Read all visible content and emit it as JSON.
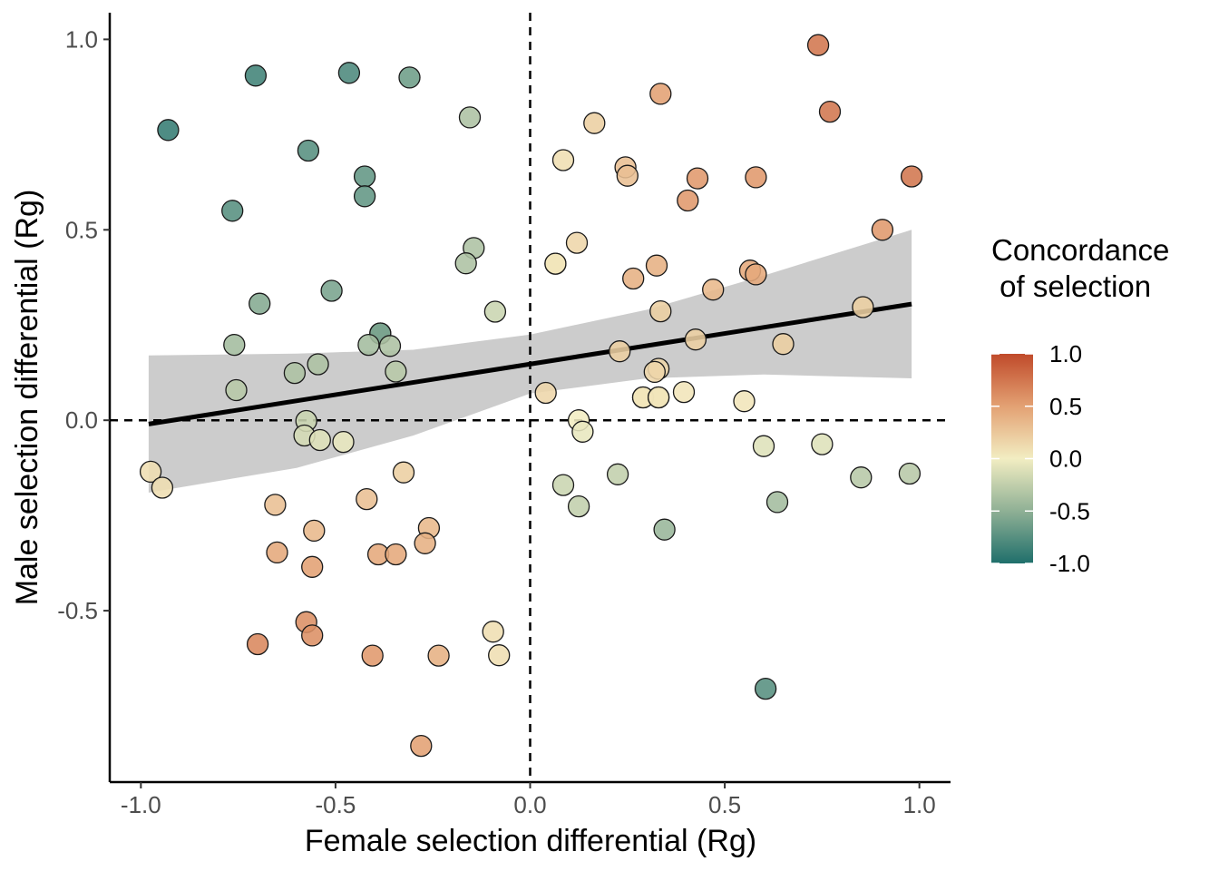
{
  "chart_data": {
    "type": "scatter",
    "xlabel": "Female selection differential (Rg)",
    "ylabel": "Male selection differential (Rg)",
    "xlim": [
      -1.08,
      1.08
    ],
    "ylim": [
      -0.95,
      1.07
    ],
    "x_ticks": [
      -1.0,
      -0.5,
      0.0,
      0.5,
      1.0
    ],
    "x_tick_labels": [
      "-1.0",
      "-0.5",
      "0.0",
      "0.5",
      "1.0"
    ],
    "y_ticks": [
      -0.5,
      0.0,
      0.5,
      1.0
    ],
    "y_tick_labels": [
      "-0.5",
      "0.0",
      "0.5",
      "1.0"
    ],
    "reference_lines": {
      "x": 0,
      "y": 0,
      "style": "dashed"
    },
    "grid": false,
    "legend": {
      "title_lines": [
        "Concordance",
        " of selection"
      ],
      "position": "right",
      "type": "colorbar",
      "range": [
        -1.0,
        1.0
      ],
      "tick_values": [
        1.0,
        0.5,
        0.0,
        -0.5,
        -1.0
      ],
      "tick_labels": [
        "1.0",
        "0.5",
        "0.0",
        "-0.5",
        "-1.0"
      ],
      "color_stops": [
        {
          "value": -1.0,
          "color": "#1f6f6b"
        },
        {
          "value": -0.5,
          "color": "#8fb095"
        },
        {
          "value": 0.0,
          "color": "#f2edc2"
        },
        {
          "value": 0.5,
          "color": "#e3a173"
        },
        {
          "value": 1.0,
          "color": "#c04a2a"
        }
      ]
    },
    "trend_line": {
      "x_range": [
        -0.98,
        0.98
      ],
      "y_start": -0.01,
      "y_end": 0.305,
      "ci_upper": [
        [
          -0.98,
          0.17
        ],
        [
          -0.6,
          0.175
        ],
        [
          -0.3,
          0.185
        ],
        [
          0.0,
          0.225
        ],
        [
          0.3,
          0.29
        ],
        [
          0.6,
          0.38
        ],
        [
          0.98,
          0.5
        ]
      ],
      "ci_lower": [
        [
          -0.98,
          -0.19
        ],
        [
          -0.6,
          -0.125
        ],
        [
          -0.3,
          -0.04
        ],
        [
          0.0,
          0.07
        ],
        [
          0.3,
          0.11
        ],
        [
          0.6,
          0.12
        ],
        [
          0.98,
          0.11
        ]
      ],
      "line_color": "#000000",
      "ribbon_color": "#cccccc"
    },
    "series": [
      {
        "points": [
          {
            "x": 0.74,
            "y": 0.985,
            "c": 0.75
          },
          {
            "x": 0.77,
            "y": 0.81,
            "c": 0.75
          },
          {
            "x": 0.98,
            "y": 0.64,
            "c": 0.75
          },
          {
            "x": 0.335,
            "y": 0.857,
            "c": 0.5
          },
          {
            "x": 0.165,
            "y": 0.78,
            "c": 0.2
          },
          {
            "x": 0.085,
            "y": 0.683,
            "c": 0.1
          },
          {
            "x": 0.245,
            "y": 0.664,
            "c": 0.3
          },
          {
            "x": 0.25,
            "y": 0.642,
            "c": 0.3
          },
          {
            "x": 0.43,
            "y": 0.635,
            "c": 0.55
          },
          {
            "x": 0.58,
            "y": 0.638,
            "c": 0.55
          },
          {
            "x": 0.405,
            "y": 0.577,
            "c": 0.55
          },
          {
            "x": 0.905,
            "y": 0.5,
            "c": 0.55
          },
          {
            "x": 0.12,
            "y": 0.466,
            "c": 0.15
          },
          {
            "x": 0.065,
            "y": 0.411,
            "c": 0.05
          },
          {
            "x": 0.065,
            "y": 0.411,
            "c": 0.05
          },
          {
            "x": 0.325,
            "y": 0.406,
            "c": 0.4
          },
          {
            "x": 0.265,
            "y": 0.372,
            "c": 0.4
          },
          {
            "x": 0.565,
            "y": 0.393,
            "c": 0.45
          },
          {
            "x": 0.58,
            "y": 0.383,
            "c": 0.45
          },
          {
            "x": 0.47,
            "y": 0.343,
            "c": 0.35
          },
          {
            "x": 0.855,
            "y": 0.297,
            "c": 0.2
          },
          {
            "x": 0.335,
            "y": 0.286,
            "c": 0.2
          },
          {
            "x": 0.425,
            "y": 0.212,
            "c": 0.2
          },
          {
            "x": 0.65,
            "y": 0.2,
            "c": 0.2
          },
          {
            "x": 0.23,
            "y": 0.181,
            "c": 0.2
          },
          {
            "x": 0.33,
            "y": 0.135,
            "c": 0.15
          },
          {
            "x": 0.32,
            "y": 0.127,
            "c": 0.15
          },
          {
            "x": 0.04,
            "y": 0.072,
            "c": 0.15
          },
          {
            "x": 0.29,
            "y": 0.06,
            "c": 0.05
          },
          {
            "x": 0.29,
            "y": 0.06,
            "c": 0.05
          },
          {
            "x": 0.33,
            "y": 0.06,
            "c": 0.05
          },
          {
            "x": 0.33,
            "y": 0.06,
            "c": 0.05
          },
          {
            "x": 0.395,
            "y": 0.074,
            "c": 0.05
          },
          {
            "x": 0.55,
            "y": 0.05,
            "c": 0.05
          },
          {
            "x": 0.125,
            "y": 0.0,
            "c": 0.0
          },
          {
            "x": 0.135,
            "y": -0.03,
            "c": -0.05
          },
          {
            "x": 0.6,
            "y": -0.068,
            "c": -0.1
          },
          {
            "x": 0.75,
            "y": -0.063,
            "c": -0.1
          },
          {
            "x": 0.085,
            "y": -0.17,
            "c": -0.2
          },
          {
            "x": 0.125,
            "y": -0.226,
            "c": -0.25
          },
          {
            "x": 0.225,
            "y": -0.142,
            "c": -0.25
          },
          {
            "x": 0.85,
            "y": -0.15,
            "c": -0.3
          },
          {
            "x": 0.975,
            "y": -0.14,
            "c": -0.3
          },
          {
            "x": 0.635,
            "y": -0.215,
            "c": -0.4
          },
          {
            "x": 0.345,
            "y": -0.287,
            "c": -0.45
          },
          {
            "x": 0.605,
            "y": -0.705,
            "c": -0.75
          },
          {
            "x": -0.705,
            "y": 0.905,
            "c": -0.85
          },
          {
            "x": -0.465,
            "y": 0.912,
            "c": -0.8
          },
          {
            "x": -0.31,
            "y": 0.9,
            "c": -0.65
          },
          {
            "x": -0.93,
            "y": 0.762,
            "c": -0.9
          },
          {
            "x": -0.57,
            "y": 0.708,
            "c": -0.75
          },
          {
            "x": -0.155,
            "y": 0.795,
            "c": -0.35
          },
          {
            "x": -0.425,
            "y": 0.64,
            "c": -0.7
          },
          {
            "x": -0.425,
            "y": 0.588,
            "c": -0.7
          },
          {
            "x": -0.765,
            "y": 0.55,
            "c": -0.75
          },
          {
            "x": -0.145,
            "y": 0.452,
            "c": -0.35
          },
          {
            "x": -0.165,
            "y": 0.412,
            "c": -0.35
          },
          {
            "x": -0.51,
            "y": 0.34,
            "c": -0.6
          },
          {
            "x": -0.695,
            "y": 0.306,
            "c": -0.55
          },
          {
            "x": -0.09,
            "y": 0.285,
            "c": -0.2
          },
          {
            "x": -0.385,
            "y": 0.228,
            "c": -0.6
          },
          {
            "x": -0.385,
            "y": 0.228,
            "c": -0.6
          },
          {
            "x": -0.76,
            "y": 0.198,
            "c": -0.4
          },
          {
            "x": -0.415,
            "y": 0.198,
            "c": -0.4
          },
          {
            "x": -0.36,
            "y": 0.195,
            "c": -0.35
          },
          {
            "x": -0.605,
            "y": 0.124,
            "c": -0.35
          },
          {
            "x": -0.545,
            "y": 0.147,
            "c": -0.35
          },
          {
            "x": -0.345,
            "y": 0.128,
            "c": -0.3
          },
          {
            "x": -0.755,
            "y": 0.079,
            "c": -0.3
          },
          {
            "x": -0.575,
            "y": -0.002,
            "c": -0.2
          },
          {
            "x": -0.58,
            "y": -0.04,
            "c": -0.15
          },
          {
            "x": -0.54,
            "y": -0.052,
            "c": -0.1
          },
          {
            "x": -0.48,
            "y": -0.057,
            "c": -0.05
          },
          {
            "x": -0.975,
            "y": -0.135,
            "c": 0.1
          },
          {
            "x": -0.945,
            "y": -0.177,
            "c": 0.1
          },
          {
            "x": -0.325,
            "y": -0.137,
            "c": 0.2
          },
          {
            "x": -0.655,
            "y": -0.222,
            "c": 0.3
          },
          {
            "x": -0.42,
            "y": -0.207,
            "c": 0.3
          },
          {
            "x": -0.555,
            "y": -0.29,
            "c": 0.35
          },
          {
            "x": -0.26,
            "y": -0.283,
            "c": 0.35
          },
          {
            "x": -0.27,
            "y": -0.323,
            "c": 0.4
          },
          {
            "x": -0.65,
            "y": -0.347,
            "c": 0.45
          },
          {
            "x": -0.39,
            "y": -0.352,
            "c": 0.45
          },
          {
            "x": -0.345,
            "y": -0.352,
            "c": 0.45
          },
          {
            "x": -0.56,
            "y": -0.385,
            "c": 0.5
          },
          {
            "x": -0.575,
            "y": -0.53,
            "c": 0.6
          },
          {
            "x": -0.56,
            "y": -0.565,
            "c": 0.6
          },
          {
            "x": -0.7,
            "y": -0.588,
            "c": 0.65
          },
          {
            "x": -0.405,
            "y": -0.618,
            "c": 0.55
          },
          {
            "x": -0.235,
            "y": -0.618,
            "c": 0.4
          },
          {
            "x": -0.095,
            "y": -0.555,
            "c": 0.1
          },
          {
            "x": -0.08,
            "y": -0.617,
            "c": 0.1
          },
          {
            "x": -0.28,
            "y": -0.855,
            "c": 0.5
          }
        ]
      }
    ]
  }
}
